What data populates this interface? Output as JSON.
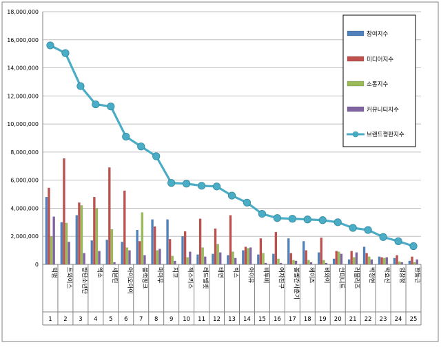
{
  "chart_data": {
    "type": "bar",
    "title": "",
    "xlabel": "",
    "ylabel": "",
    "ylim": [
      0,
      18000000
    ],
    "yticks": [
      0,
      2000000,
      4000000,
      6000000,
      8000000,
      10000000,
      12000000,
      14000000,
      16000000,
      18000000
    ],
    "ytick_labels": [
      "0",
      "2,000,000",
      "4,000,000",
      "6,000,000",
      "8,000,000",
      "10,000,000",
      "12,000,000",
      "14,000,000",
      "16,000,000",
      "18,000,000"
    ],
    "grid": "horizontal",
    "legend_position": "top-right",
    "ranks": [
      "1",
      "2",
      "3",
      "4",
      "5",
      "6",
      "7",
      "8",
      "9",
      "10",
      "11",
      "12",
      "13",
      "14",
      "15",
      "16",
      "17",
      "18",
      "19",
      "20",
      "21",
      "22",
      "23",
      "24",
      "25"
    ],
    "categories": [
      "빅뱅",
      "트와이스",
      "방탄소년단",
      "엑소",
      "세븐틴",
      "아이오아이",
      "블랙핑크",
      "마마무",
      "지코",
      "젝스키스",
      "레드벨벳",
      "태연",
      "빅스",
      "아이유",
      "비투비",
      "여자친구",
      "볼빨간사춘기",
      "헤이즈",
      "비와이",
      "인피니트",
      "러블리즈",
      "박정현",
      "박효신",
      "임창정",
      "한동근"
    ],
    "series": [
      {
        "name": "참여지수",
        "kind": "bar",
        "color": "#4f81bd",
        "values": [
          4800000,
          3000000,
          3500000,
          1700000,
          1750000,
          1600000,
          2450000,
          3200000,
          3200000,
          2000000,
          700000,
          750000,
          650000,
          1000000,
          700000,
          750000,
          1850000,
          1650000,
          850000,
          400000,
          350000,
          1250000,
          550000,
          450000,
          250000
        ]
      },
      {
        "name": "미디어지수",
        "kind": "bar",
        "color": "#c0504d",
        "values": [
          5450000,
          7550000,
          4400000,
          4800000,
          6900000,
          5250000,
          1650000,
          2700000,
          1800000,
          2350000,
          3250000,
          2550000,
          3500000,
          1250000,
          1850000,
          2300000,
          800000,
          1000000,
          1900000,
          950000,
          950000,
          800000,
          500000,
          650000,
          550000
        ]
      },
      {
        "name": "소통지수",
        "kind": "bar",
        "color": "#9bbb59",
        "values": [
          2000000,
          2950000,
          4200000,
          4000000,
          2500000,
          1200000,
          3700000,
          1000000,
          600000,
          500000,
          1200000,
          1450000,
          900000,
          1150000,
          800000,
          400000,
          300000,
          300000,
          300000,
          900000,
          500000,
          550000,
          450000,
          200000,
          150000
        ]
      },
      {
        "name": "커뮤니티지수",
        "kind": "bar",
        "color": "#8064a2",
        "values": [
          3400000,
          1600000,
          800000,
          950000,
          150000,
          1000000,
          650000,
          1100000,
          250000,
          900000,
          550000,
          850000,
          450000,
          1200000,
          100000,
          100000,
          250000,
          150000,
          100000,
          750000,
          850000,
          350000,
          500000,
          150000,
          350000
        ]
      },
      {
        "name": "브랜드평판지수",
        "kind": "line",
        "color": "#4bacc6",
        "values": [
          15600000,
          15050000,
          12700000,
          11400000,
          11250000,
          9100000,
          8400000,
          7700000,
          5800000,
          5750000,
          5600000,
          5550000,
          4900000,
          4400000,
          3600000,
          3300000,
          3250000,
          3200000,
          3150000,
          3000000,
          2600000,
          2450000,
          1950000,
          1650000,
          1300000
        ]
      }
    ]
  }
}
